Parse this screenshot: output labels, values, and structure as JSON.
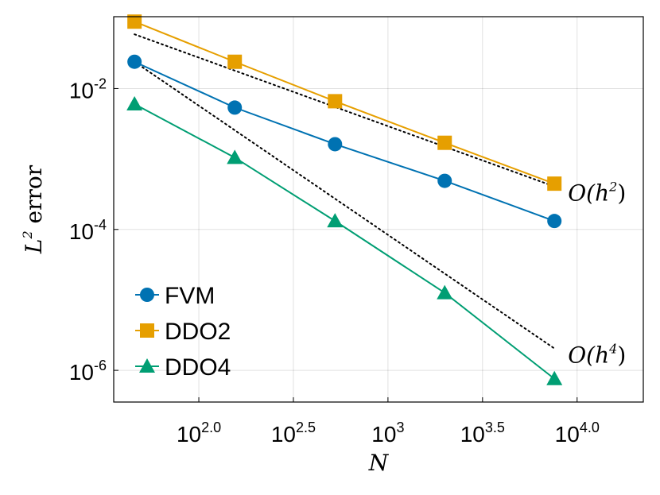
{
  "chart_data": {
    "type": "line",
    "xscale": "log10",
    "yscale": "log10",
    "xlabel": "N",
    "ylabel": "L² error",
    "ylabel_parts": {
      "base": "L",
      "sup": "2",
      "rest": " error"
    },
    "xlim_log10": [
      1.55,
      4.35
    ],
    "ylim_log10": [
      -6.45,
      -0.98
    ],
    "xticks": [
      {
        "log": 2.0,
        "base": "10",
        "exp": "2.0"
      },
      {
        "log": 2.5,
        "base": "10",
        "exp": "2.5"
      },
      {
        "log": 3.0,
        "base": "10",
        "exp": "3"
      },
      {
        "log": 3.5,
        "base": "10",
        "exp": "3.5"
      },
      {
        "log": 4.0,
        "base": "10",
        "exp": "4.0"
      }
    ],
    "yticks": [
      {
        "log": -2,
        "base": "10",
        "exp": "-2"
      },
      {
        "log": -4,
        "base": "10",
        "exp": "-4"
      },
      {
        "log": -6,
        "base": "10",
        "exp": "-6"
      }
    ],
    "grid": true,
    "x_log10": [
      1.66,
      2.19,
      2.72,
      3.3,
      3.88
    ],
    "series": [
      {
        "name": "FVM",
        "marker": "circle",
        "color": "#0072B2",
        "y_log10": [
          -1.62,
          -2.27,
          -2.79,
          -3.31,
          -3.88
        ]
      },
      {
        "name": "DDO2",
        "marker": "square",
        "color": "#E69F00",
        "y_log10": [
          -1.05,
          -1.62,
          -2.18,
          -2.77,
          -3.35
        ]
      },
      {
        "name": "DDO4",
        "marker": "triangle",
        "color": "#009E73",
        "y_log10": [
          -2.22,
          -2.98,
          -3.88,
          -4.9,
          -6.12
        ]
      }
    ],
    "reference_lines": [
      {
        "label": "O(h²)",
        "base": "O(h",
        "sup": "2",
        "close": ")",
        "x_log10": [
          1.66,
          3.88
        ],
        "y_log10": [
          -1.23,
          -3.39
        ]
      },
      {
        "label": "O(h⁴)",
        "base": "O(h",
        "sup": "4",
        "close": ")",
        "x_log10": [
          1.66,
          3.88
        ],
        "y_log10": [
          -1.62,
          -5.69
        ]
      }
    ],
    "legend": {
      "position": "bottom-left",
      "entries": [
        "FVM",
        "DDO2",
        "DDO4"
      ]
    }
  }
}
